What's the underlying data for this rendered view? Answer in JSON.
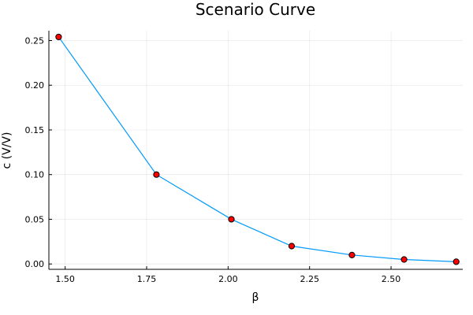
{
  "chart_data": {
    "type": "line",
    "title": "Scenario Curve",
    "xlabel": "β",
    "ylabel": "c (V/V)",
    "xlim": [
      1.45,
      2.72
    ],
    "ylim": [
      -0.006,
      0.261
    ],
    "xticks": [
      1.5,
      1.75,
      2.0,
      2.25,
      2.5
    ],
    "xtick_labels": [
      "1.50",
      "1.75",
      "2.00",
      "2.25",
      "2.50"
    ],
    "yticks": [
      0.0,
      0.05,
      0.1,
      0.15,
      0.2,
      0.25
    ],
    "ytick_labels": [
      "0.00",
      "0.05",
      "0.10",
      "0.15",
      "0.20",
      "0.25"
    ],
    "grid": true,
    "legend": "none",
    "series": [
      {
        "x": [
          1.48,
          1.78,
          2.01,
          2.195,
          2.38,
          2.54,
          2.7
        ],
        "y": [
          0.254,
          0.1,
          0.05,
          0.02,
          0.01,
          0.005,
          0.0025
        ],
        "line_color": "#009AFA",
        "marker_color": "#FF0000"
      }
    ]
  }
}
